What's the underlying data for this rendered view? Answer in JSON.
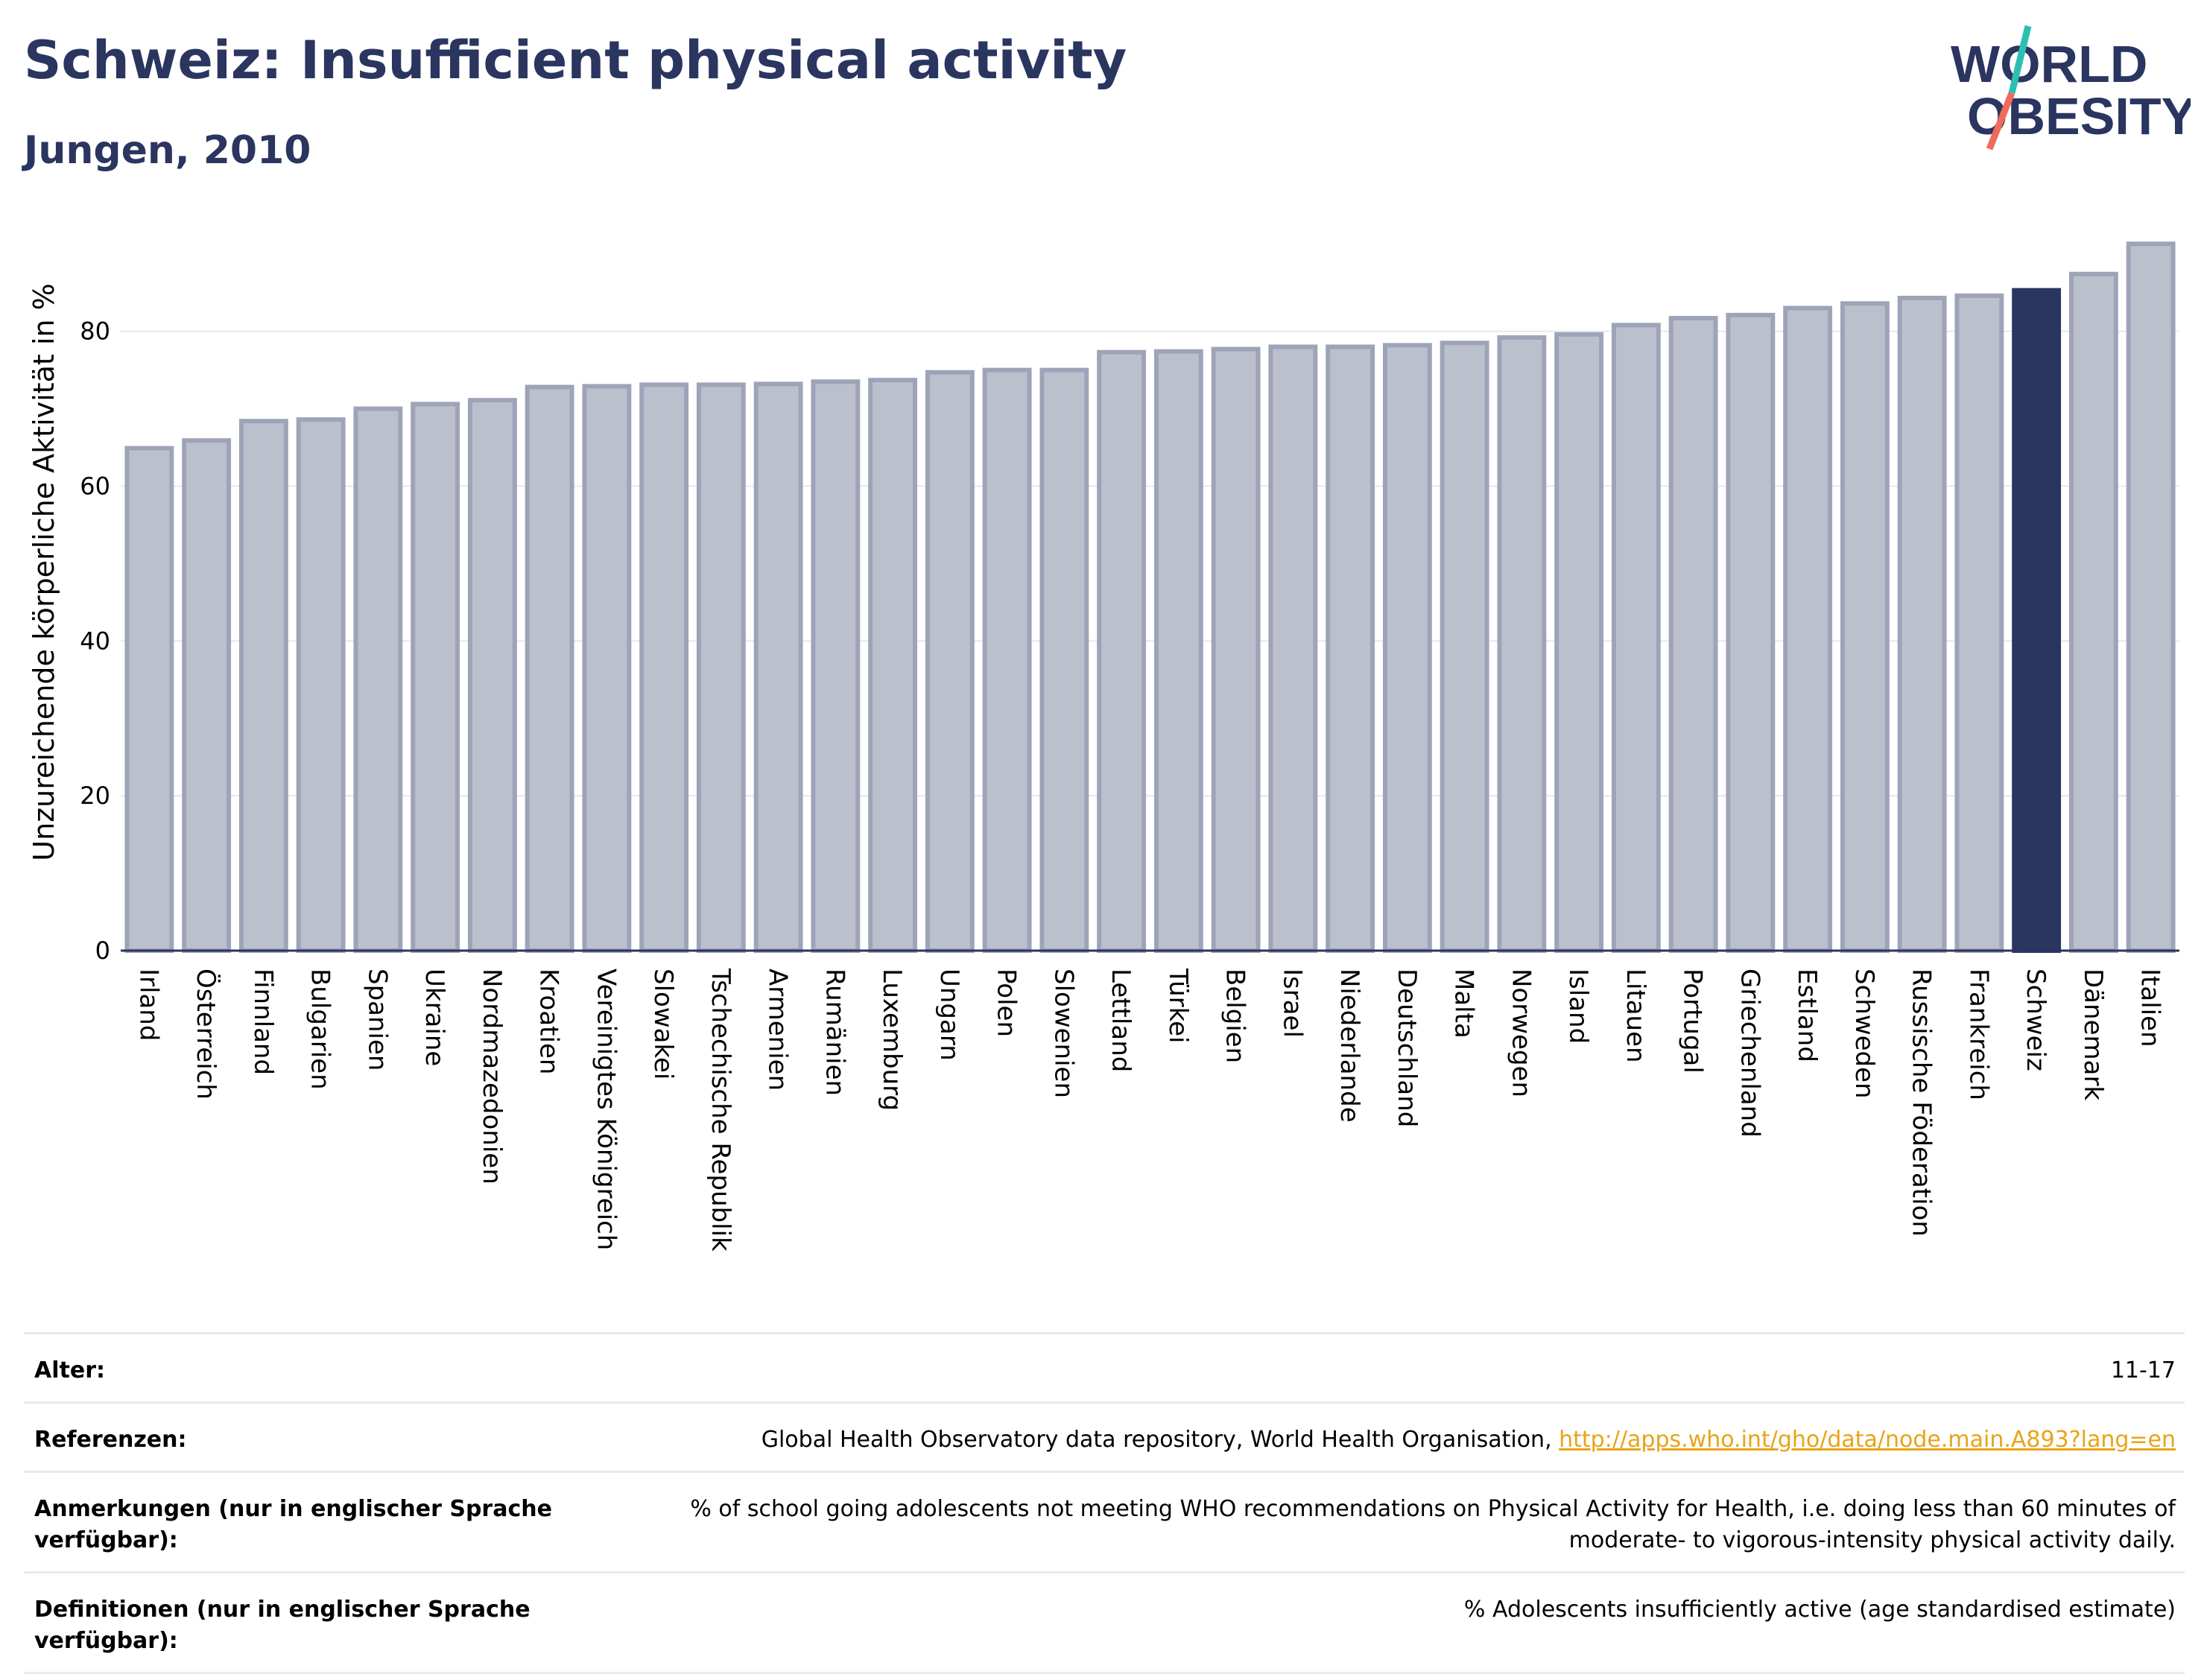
{
  "title": "Schweiz: Insufficient physical activity",
  "subtitle": "Jungen, 2010",
  "logo": {
    "line1": "WORLD",
    "line2": "OBESITY",
    "colors": {
      "text": "#2a3560",
      "accent_teal": "#2bbfb2",
      "accent_coral": "#ef6b5b"
    }
  },
  "chart_data": {
    "type": "bar",
    "ylabel": "Unzureichende körperliche Aktivität in %",
    "ylim": [
      0,
      92
    ],
    "yticks": [
      0,
      20,
      40,
      60,
      80
    ],
    "grid": true,
    "categories": [
      "Irland",
      "Österreich",
      "Finnland",
      "Bulgarien",
      "Spanien",
      "Ukraine",
      "Nordmazedonien",
      "Kroatien",
      "Vereinigtes Königreich",
      "Slowakei",
      "Tschechische Republik",
      "Armenien",
      "Rumänien",
      "Luxemburg",
      "Ungarn",
      "Polen",
      "Slowenien",
      "Lettland",
      "Türkei",
      "Belgien",
      "Israel",
      "Niederlande",
      "Deutschland",
      "Malta",
      "Norwegen",
      "Island",
      "Litauen",
      "Portugal",
      "Griechenland",
      "Estland",
      "Schweden",
      "Russische Föderation",
      "Frankreich",
      "Schweiz",
      "Dänemark",
      "Italien"
    ],
    "values": [
      64.9,
      65.9,
      68.4,
      68.6,
      70.0,
      70.6,
      71.1,
      72.8,
      72.9,
      73.1,
      73.1,
      73.2,
      73.5,
      73.7,
      74.7,
      75.0,
      75.0,
      77.3,
      77.4,
      77.7,
      78.0,
      78.0,
      78.2,
      78.5,
      79.2,
      79.6,
      80.8,
      81.7,
      82.1,
      83.0,
      83.6,
      84.3,
      84.6,
      85.3,
      87.4,
      91.3
    ],
    "highlight": "Schweiz",
    "colors": {
      "bar": "#bcc0cc",
      "bar_edge": "#9ea4b8",
      "highlight": "#2a3560",
      "grid": "#e6e8ee",
      "axis": "#2a3560"
    }
  },
  "meta": [
    {
      "key": "Alter:",
      "value": "11-17"
    },
    {
      "key": "Referenzen:",
      "value": "Global Health Observatory data repository, World Health Organisation, ",
      "link": "http://apps.who.int/gho/data/node.main.A893?lang=en"
    },
    {
      "key": "Anmerkungen (nur in englischer Sprache verfügbar):",
      "value": "% of school going adolescents not meeting WHO recommendations on Physical Activity for Health, i.e. doing less than 60 minutes of moderate- to vigorous-intensity physical activity daily."
    },
    {
      "key": "Definitionen (nur in englischer Sprache verfügbar):",
      "value": "% Adolescents insufficiently active (age standardised estimate)"
    }
  ]
}
